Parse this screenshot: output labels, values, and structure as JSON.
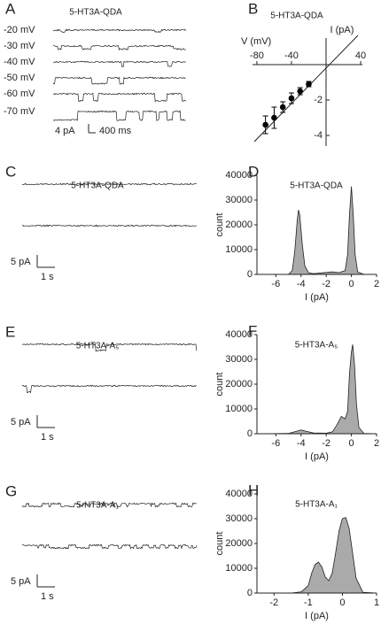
{
  "traces": [
    {
      "label": "A",
      "title": "5-HT3A-QDA",
      "voltages": [
        "-20 mV",
        "-30 mV",
        "-40 mV",
        "-50 mV",
        "-60 mV",
        "-70 mV"
      ],
      "scale_current": "4 pA",
      "scale_time": "400 ms"
    },
    {
      "label": "C",
      "title": "5-HT3A-QDA",
      "scale_current": "5 pA",
      "scale_time": "1 s"
    },
    {
      "label": "E",
      "title": "5-HT3A-A₅",
      "scale_current": "5 pA",
      "scale_time": "1 s"
    },
    {
      "label": "G",
      "title": "5-HT3A-A₁",
      "scale_current": "5 pA",
      "scale_time": "1 s"
    }
  ],
  "chart_data": [
    {
      "type": "scatter",
      "label": "B",
      "title": "5-HT3A-QDA",
      "xlabel": "V (mV)",
      "ylabel": "I (pA)",
      "x": [
        -70,
        -60,
        -50,
        -40,
        -30,
        -20
      ],
      "values": [
        -3.4,
        -3.0,
        -2.4,
        -1.9,
        -1.5,
        -1.1
      ],
      "errors": [
        0.5,
        0.6,
        0.3,
        0.3,
        0.2,
        0.15
      ],
      "xlim": [
        -85,
        42
      ],
      "ylim": [
        -4.6,
        1.75
      ],
      "xticks": [
        -80,
        -40,
        40
      ],
      "yticks": [
        -2,
        -4
      ],
      "color": "#000000"
    },
    {
      "type": "area",
      "label": "D",
      "title": "5-HT3A-QDA",
      "xlabel": "I (pA)",
      "ylabel": "count",
      "x": [
        -7,
        -5,
        -4.7,
        -4.5,
        -4.3,
        -4.2,
        -4.1,
        -3.9,
        -3.7,
        -3.4,
        -3,
        -2,
        -1.5,
        -1,
        -0.5,
        -0.3,
        -0.15,
        0,
        0.15,
        0.3,
        0.5,
        1,
        2
      ],
      "values": [
        0,
        0,
        1500,
        9000,
        22000,
        26000,
        24000,
        12000,
        3500,
        600,
        300,
        800,
        1000,
        700,
        1500,
        8000,
        24000,
        35500,
        24000,
        8000,
        1000,
        0,
        0
      ],
      "xlim": [
        -7.5,
        2
      ],
      "ylim": [
        0,
        40000
      ],
      "xticks": [
        -6,
        -4,
        -2,
        0,
        2
      ],
      "yticks": [
        0,
        10000,
        20000,
        30000,
        40000
      ],
      "color": "#aaaaaa"
    },
    {
      "type": "area",
      "label": "F",
      "title": "5-HT3A-A₅",
      "xlabel": "I (pA)",
      "ylabel": "count",
      "x": [
        -7,
        -5,
        -4.5,
        -4,
        -3.5,
        -3,
        -2,
        -1.5,
        -1.1,
        -0.8,
        -0.5,
        -0.3,
        -0.15,
        0,
        0.1,
        0.25,
        0.4,
        0.6,
        1,
        2
      ],
      "values": [
        0,
        100,
        800,
        1500,
        900,
        300,
        200,
        800,
        4000,
        7000,
        6000,
        9000,
        24000,
        33000,
        36000,
        28000,
        12000,
        2500,
        100,
        0
      ],
      "xlim": [
        -7.5,
        2
      ],
      "ylim": [
        0,
        40000
      ],
      "xticks": [
        -6,
        -4,
        -2,
        0,
        2
      ],
      "yticks": [
        0,
        10000,
        20000,
        30000,
        40000
      ],
      "color": "#aaaaaa"
    },
    {
      "type": "area",
      "label": "H",
      "title": "5-HT3A-A₁",
      "xlabel": "I (pA)",
      "ylabel": "count",
      "x": [
        -2.5,
        -1.5,
        -1.2,
        -1,
        -0.9,
        -0.8,
        -0.7,
        -0.6,
        -0.5,
        -0.4,
        -0.3,
        -0.2,
        -0.1,
        0,
        0.1,
        0.2,
        0.3,
        0.4,
        0.6,
        1
      ],
      "values": [
        0,
        0,
        500,
        3000,
        8000,
        11500,
        12500,
        10500,
        6500,
        5000,
        8000,
        16000,
        25000,
        30000,
        30500,
        26000,
        16000,
        6000,
        300,
        0
      ],
      "xlim": [
        -2.5,
        1
      ],
      "ylim": [
        0,
        40000
      ],
      "xticks": [
        -2,
        -1,
        0,
        1
      ],
      "yticks": [
        0,
        10000,
        20000,
        30000,
        40000
      ],
      "color": "#aaaaaa"
    }
  ]
}
